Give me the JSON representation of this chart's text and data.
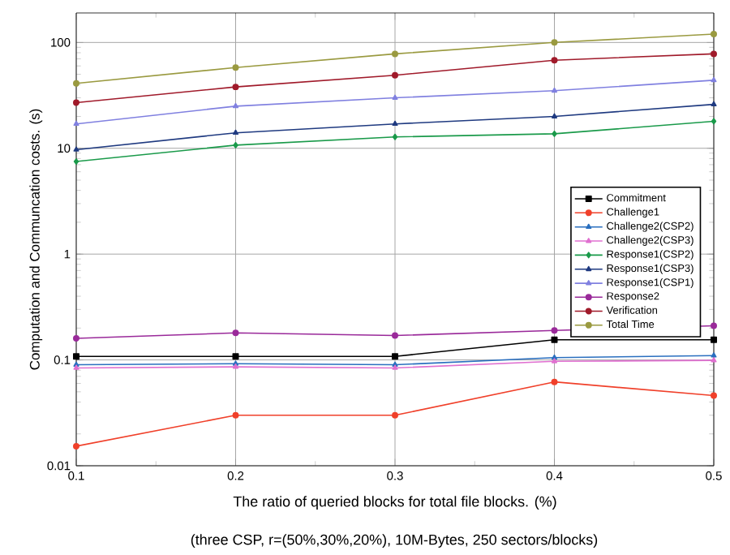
{
  "chart_data": {
    "type": "line",
    "xlabel": "The ratio of queried blocks for total file blocks. (%)",
    "ylabel": "Computation and Communcation costs. (s)",
    "annotations": [
      "(three CSP, r=(50%,30%,20%), 10M-Bytes, 250 sectors/blocks)"
    ],
    "x": [
      0.1,
      0.2,
      0.3,
      0.4,
      0.5
    ],
    "xlim": [
      0.1,
      0.5
    ],
    "xticks": [
      0.1,
      0.2,
      0.3,
      0.4,
      0.5
    ],
    "ylim": [
      0.01,
      190
    ],
    "yticks": [
      0.01,
      0.1,
      1,
      10,
      100
    ],
    "log": true,
    "grid": true,
    "legend": "right",
    "line_style": "solid",
    "series": [
      {
        "name": "Commitment",
        "color": "#000000",
        "marker": "square",
        "values": [
          0.108,
          0.108,
          0.108,
          0.155,
          0.155
        ]
      },
      {
        "name": "Challenge1",
        "color": "#f0402a",
        "marker": "circle",
        "values": [
          0.0153,
          0.03,
          0.03,
          0.062,
          0.046
        ]
      },
      {
        "name": "Challenge2(CSP2)",
        "color": "#2a6fbf",
        "marker": "triangle",
        "values": [
          0.09,
          0.092,
          0.09,
          0.105,
          0.11
        ]
      },
      {
        "name": "Challenge2(CSP3)",
        "color": "#e070d0",
        "marker": "triangle",
        "values": [
          0.084,
          0.086,
          0.084,
          0.097,
          0.099
        ]
      },
      {
        "name": "Response1(CSP2)",
        "color": "#1a9a4a",
        "marker": "diamond",
        "values": [
          7.5,
          10.7,
          12.8,
          13.7,
          18
        ]
      },
      {
        "name": "Response1(CSP3)",
        "color": "#1f3a80",
        "marker": "triangle",
        "values": [
          9.7,
          14,
          17,
          20,
          26
        ]
      },
      {
        "name": "Response1(CSP1)",
        "color": "#8080e0",
        "marker": "triangle",
        "values": [
          17,
          25,
          30,
          35,
          44
        ]
      },
      {
        "name": "Response2",
        "color": "#9a2a9a",
        "marker": "circle",
        "values": [
          0.16,
          0.18,
          0.17,
          0.19,
          0.21
        ]
      },
      {
        "name": "Verification",
        "color": "#a01a2a",
        "marker": "circle",
        "values": [
          27,
          38,
          49,
          68,
          78
        ]
      },
      {
        "name": "Total Time",
        "color": "#9a9a40",
        "marker": "circle",
        "values": [
          41,
          58,
          78,
          100,
          120
        ]
      }
    ]
  }
}
